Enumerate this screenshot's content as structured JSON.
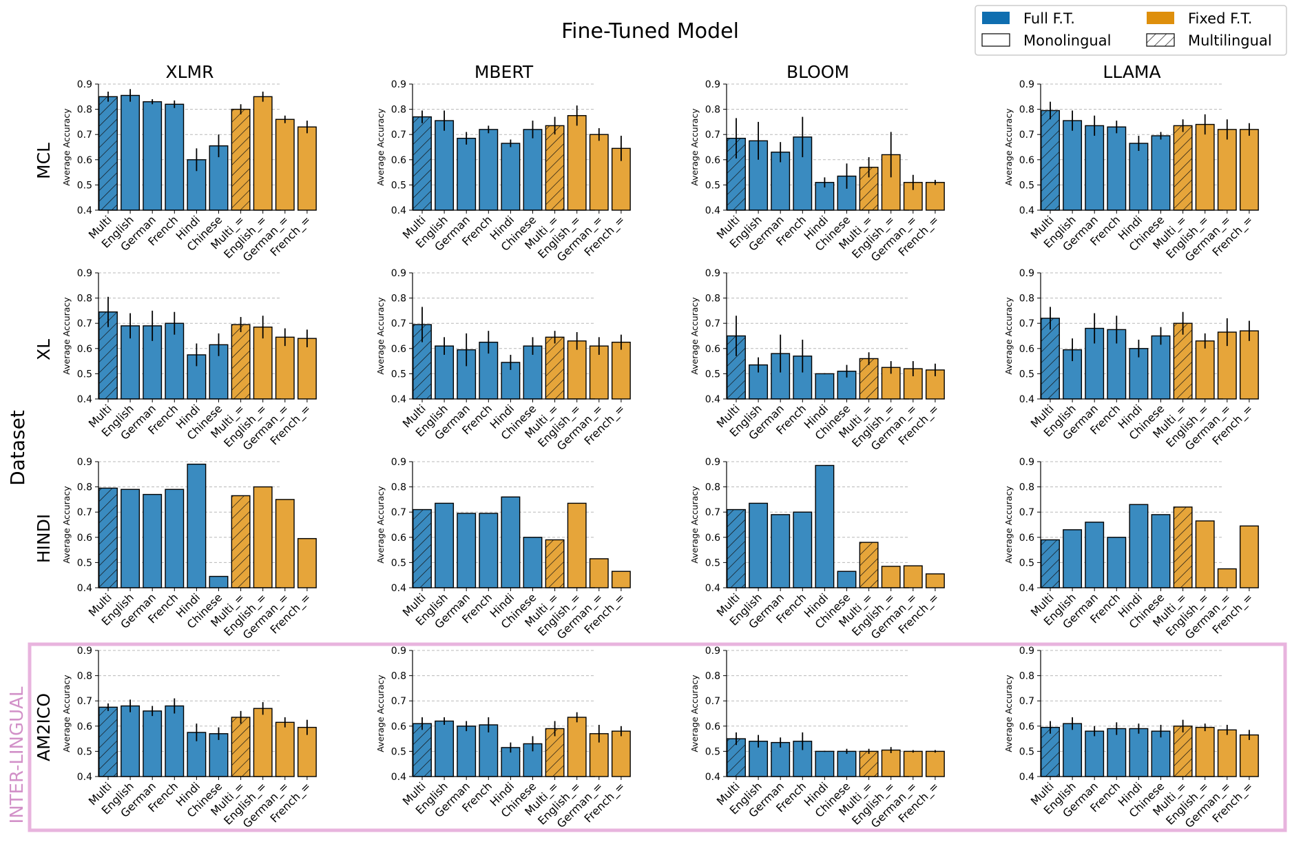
{
  "figure": {
    "title": "Fine-Tuned Model",
    "dataset_label": "Dataset",
    "inter_label": "INTER-LINGUAL",
    "y_axis_label": "Average Accuracy",
    "ylim": [
      0.4,
      0.9
    ],
    "yticks": [
      "0.4",
      "0.5",
      "0.6",
      "0.7",
      "0.8",
      "0.9"
    ],
    "grid": "dashed horizontal"
  },
  "legend": {
    "full_ft": "Full F.T.",
    "fixed_ft": "Fixed F.T.",
    "monolingual": "Monolingual",
    "multilingual": "Multilingual"
  },
  "colors": {
    "full_ft": "#3a8bc0",
    "fixed_ft": "#e6a53a",
    "legend_full_ft": "#0f6eb0",
    "legend_fixed_ft": "#de8f0c",
    "inter_box": "#e8b4de",
    "grid": "#b8b8b8"
  },
  "models": [
    "XLMR",
    "MBERT",
    "BLOOM",
    "LLAMA"
  ],
  "datasets": [
    "MCL",
    "XL",
    "HINDI",
    "AM2ICO"
  ],
  "categories": [
    "Multi",
    "English",
    "German",
    "French",
    "Hindi",
    "Chinese",
    "Multi_=",
    "English_=",
    "German_=",
    "French_="
  ],
  "bar_groups": [
    "full_ft",
    "full_ft",
    "full_ft",
    "full_ft",
    "full_ft",
    "full_ft",
    "fixed_ft",
    "fixed_ft",
    "fixed_ft",
    "fixed_ft"
  ],
  "hatched": [
    true,
    false,
    false,
    false,
    false,
    false,
    true,
    false,
    false,
    false
  ],
  "chart_data": [
    {
      "type": "bar",
      "dataset": "MCL",
      "model": "XLMR",
      "ylabel": "Average Accuracy",
      "ylim": [
        0.4,
        0.9
      ],
      "values": [
        0.85,
        0.855,
        0.83,
        0.82,
        0.6,
        0.655,
        0.8,
        0.85,
        0.76,
        0.73
      ],
      "errors": [
        0.02,
        0.025,
        0.01,
        0.015,
        0.045,
        0.045,
        0.02,
        0.02,
        0.015,
        0.025
      ]
    },
    {
      "type": "bar",
      "dataset": "MCL",
      "model": "MBERT",
      "ylabel": "Average Accuracy",
      "ylim": [
        0.4,
        0.9
      ],
      "values": [
        0.77,
        0.755,
        0.685,
        0.72,
        0.665,
        0.72,
        0.735,
        0.775,
        0.7,
        0.645
      ],
      "errors": [
        0.025,
        0.04,
        0.025,
        0.015,
        0.015,
        0.035,
        0.035,
        0.04,
        0.025,
        0.05
      ]
    },
    {
      "type": "bar",
      "dataset": "MCL",
      "model": "BLOOM",
      "ylabel": "Average Accuracy",
      "ylim": [
        0.4,
        0.9
      ],
      "values": [
        0.685,
        0.675,
        0.63,
        0.69,
        0.51,
        0.535,
        0.57,
        0.62,
        0.51,
        0.51
      ],
      "errors": [
        0.08,
        0.075,
        0.04,
        0.08,
        0.02,
        0.05,
        0.04,
        0.09,
        0.03,
        0.01
      ]
    },
    {
      "type": "bar",
      "dataset": "MCL",
      "model": "LLAMA",
      "ylabel": "Average Accuracy",
      "ylim": [
        0.4,
        0.9
      ],
      "values": [
        0.795,
        0.755,
        0.735,
        0.73,
        0.665,
        0.695,
        0.735,
        0.74,
        0.72,
        0.72
      ],
      "errors": [
        0.035,
        0.04,
        0.04,
        0.025,
        0.03,
        0.015,
        0.025,
        0.04,
        0.04,
        0.025
      ]
    },
    {
      "type": "bar",
      "dataset": "XL",
      "model": "XLMR",
      "ylabel": "Average Accuracy",
      "ylim": [
        0.4,
        0.9
      ],
      "values": [
        0.745,
        0.69,
        0.69,
        0.7,
        0.575,
        0.615,
        0.695,
        0.685,
        0.645,
        0.64
      ],
      "errors": [
        0.06,
        0.05,
        0.06,
        0.045,
        0.045,
        0.045,
        0.03,
        0.045,
        0.035,
        0.035
      ]
    },
    {
      "type": "bar",
      "dataset": "XL",
      "model": "MBERT",
      "ylabel": "Average Accuracy",
      "ylim": [
        0.4,
        0.9
      ],
      "values": [
        0.695,
        0.61,
        0.595,
        0.625,
        0.545,
        0.61,
        0.645,
        0.63,
        0.61,
        0.625
      ],
      "errors": [
        0.07,
        0.035,
        0.065,
        0.045,
        0.03,
        0.035,
        0.025,
        0.035,
        0.035,
        0.03
      ]
    },
    {
      "type": "bar",
      "dataset": "XL",
      "model": "BLOOM",
      "ylabel": "Average Accuracy",
      "ylim": [
        0.4,
        0.9
      ],
      "values": [
        0.65,
        0.535,
        0.58,
        0.57,
        0.5,
        0.51,
        0.56,
        0.525,
        0.52,
        0.515
      ],
      "errors": [
        0.08,
        0.03,
        0.075,
        0.065,
        0.002,
        0.025,
        0.025,
        0.025,
        0.03,
        0.025
      ]
    },
    {
      "type": "bar",
      "dataset": "XL",
      "model": "LLAMA",
      "ylabel": "Average Accuracy",
      "ylim": [
        0.4,
        0.9
      ],
      "values": [
        0.72,
        0.595,
        0.68,
        0.675,
        0.6,
        0.65,
        0.7,
        0.63,
        0.665,
        0.67
      ],
      "errors": [
        0.045,
        0.045,
        0.06,
        0.055,
        0.035,
        0.035,
        0.045,
        0.03,
        0.055,
        0.04
      ]
    },
    {
      "type": "bar",
      "dataset": "HINDI",
      "model": "XLMR",
      "ylabel": "Average Accuracy",
      "ylim": [
        0.4,
        0.9
      ],
      "values": [
        0.795,
        0.79,
        0.77,
        0.79,
        0.89,
        0.445,
        0.765,
        0.8,
        0.75,
        0.595
      ]
    },
    {
      "type": "bar",
      "dataset": "HINDI",
      "model": "MBERT",
      "ylabel": "Average Accuracy",
      "ylim": [
        0.4,
        0.9
      ],
      "values": [
        0.71,
        0.735,
        0.695,
        0.695,
        0.76,
        0.6,
        0.59,
        0.735,
        0.515,
        0.465
      ]
    },
    {
      "type": "bar",
      "dataset": "HINDI",
      "model": "BLOOM",
      "ylabel": "Average Accuracy",
      "ylim": [
        0.4,
        0.9
      ],
      "values": [
        0.71,
        0.735,
        0.69,
        0.7,
        0.885,
        0.465,
        0.58,
        0.485,
        0.487,
        0.455
      ]
    },
    {
      "type": "bar",
      "dataset": "HINDI",
      "model": "LLAMA",
      "ylabel": "Average Accuracy",
      "ylim": [
        0.4,
        0.9
      ],
      "values": [
        0.59,
        0.63,
        0.66,
        0.6,
        0.73,
        0.69,
        0.72,
        0.665,
        0.475,
        0.645
      ]
    },
    {
      "type": "bar",
      "dataset": "AM2ICO",
      "model": "XLMR",
      "ylabel": "Average Accuracy",
      "ylim": [
        0.4,
        0.9
      ],
      "values": [
        0.675,
        0.68,
        0.66,
        0.68,
        0.575,
        0.57,
        0.635,
        0.67,
        0.615,
        0.595
      ],
      "errors": [
        0.015,
        0.025,
        0.02,
        0.03,
        0.035,
        0.025,
        0.025,
        0.025,
        0.02,
        0.03
      ]
    },
    {
      "type": "bar",
      "dataset": "AM2ICO",
      "model": "MBERT",
      "ylabel": "Average Accuracy",
      "ylim": [
        0.4,
        0.9
      ],
      "values": [
        0.61,
        0.62,
        0.6,
        0.605,
        0.515,
        0.53,
        0.59,
        0.635,
        0.57,
        0.58
      ],
      "errors": [
        0.025,
        0.015,
        0.02,
        0.03,
        0.02,
        0.03,
        0.03,
        0.02,
        0.035,
        0.02
      ]
    },
    {
      "type": "bar",
      "dataset": "AM2ICO",
      "model": "BLOOM",
      "ylabel": "Average Accuracy",
      "ylim": [
        0.4,
        0.9
      ],
      "values": [
        0.55,
        0.54,
        0.535,
        0.54,
        0.5,
        0.5,
        0.5,
        0.505,
        0.5,
        0.5
      ],
      "errors": [
        0.025,
        0.025,
        0.02,
        0.035,
        0.002,
        0.01,
        0.01,
        0.012,
        0.005,
        0.005
      ]
    },
    {
      "type": "bar",
      "dataset": "AM2ICO",
      "model": "LLAMA",
      "ylabel": "Average Accuracy",
      "ylim": [
        0.4,
        0.9
      ],
      "values": [
        0.595,
        0.61,
        0.58,
        0.59,
        0.59,
        0.58,
        0.6,
        0.595,
        0.585,
        0.565
      ],
      "errors": [
        0.025,
        0.025,
        0.02,
        0.025,
        0.02,
        0.025,
        0.025,
        0.015,
        0.02,
        0.02
      ]
    }
  ]
}
